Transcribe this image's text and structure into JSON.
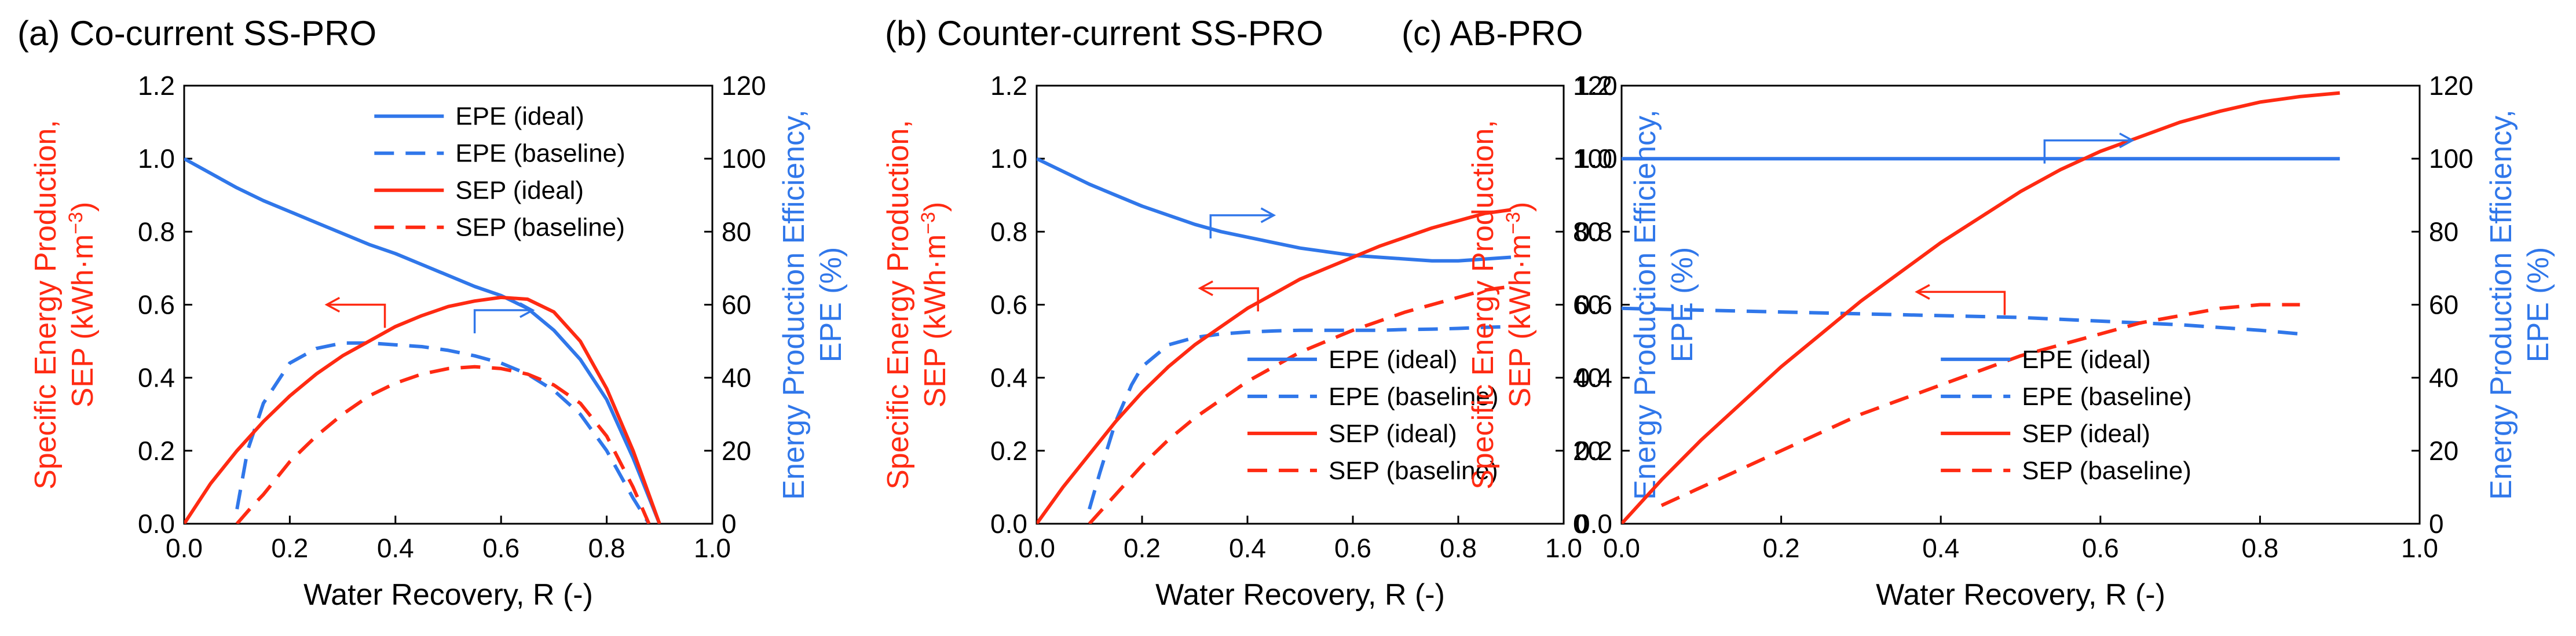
{
  "chart_data": [
    {
      "type": "line",
      "panel": "(a)",
      "title": "(a) Co-current SS-PRO",
      "xlabel": "Water Recovery, R (-)",
      "ylabel_left": [
        "Specific Energy Production,",
        "SEP (kWh·m",
        "−3",
        ")"
      ],
      "ylabel_right": [
        "Energy Production Efficiency,",
        "EPE (%)"
      ],
      "xlim": [
        0,
        1.0
      ],
      "ylim_left": [
        0,
        1.2
      ],
      "ylim_right": [
        0,
        120
      ],
      "xticks": [
        "0.0",
        "0.2",
        "0.4",
        "0.6",
        "0.8",
        "1.0"
      ],
      "yticks_left": [
        "0.0",
        "0.2",
        "0.4",
        "0.6",
        "0.8",
        "1.0",
        "1.2"
      ],
      "yticks_right": [
        "0",
        "20",
        "40",
        "60",
        "80",
        "100",
        "120"
      ],
      "legend_position": "top-right",
      "arrows": [
        {
          "from": [
            0.38,
            0.6
          ],
          "to": [
            0.27,
            0.6
          ],
          "axis": "left"
        },
        {
          "from": [
            0.55,
            0.585
          ],
          "to": [
            0.66,
            0.585
          ],
          "axis": "left"
        }
      ],
      "series": [
        {
          "name": "EPE (ideal)",
          "axis": "right",
          "color": "#3077ea",
          "dash": "solid",
          "x": [
            0.0,
            0.05,
            0.1,
            0.15,
            0.2,
            0.25,
            0.3,
            0.35,
            0.4,
            0.45,
            0.5,
            0.55,
            0.6,
            0.65,
            0.7,
            0.75,
            0.8,
            0.85,
            0.9
          ],
          "y": [
            100,
            96,
            92,
            88.5,
            85.5,
            82.5,
            79.5,
            76.5,
            74,
            71,
            68,
            65,
            62.5,
            59,
            53,
            45,
            34,
            18,
            0
          ]
        },
        {
          "name": "EPE (baseline)",
          "axis": "right",
          "color": "#3077ea",
          "dash": "dashed",
          "x": [
            0.1,
            0.12,
            0.15,
            0.2,
            0.25,
            0.3,
            0.35,
            0.4,
            0.45,
            0.5,
            0.55,
            0.6,
            0.65,
            0.7,
            0.75,
            0.8,
            0.85,
            0.88
          ],
          "y": [
            4,
            20,
            33,
            44,
            48,
            49.5,
            49.5,
            49,
            48.5,
            47.5,
            46,
            44,
            41,
            36.5,
            30,
            20,
            7,
            0
          ]
        },
        {
          "name": "SEP (ideal)",
          "axis": "left",
          "color": "#ff2a12",
          "dash": "solid",
          "x": [
            0.0,
            0.05,
            0.1,
            0.15,
            0.2,
            0.25,
            0.3,
            0.35,
            0.4,
            0.45,
            0.5,
            0.55,
            0.6,
            0.65,
            0.7,
            0.75,
            0.8,
            0.85,
            0.9
          ],
          "y": [
            0.0,
            0.11,
            0.2,
            0.28,
            0.35,
            0.41,
            0.46,
            0.5,
            0.54,
            0.57,
            0.595,
            0.61,
            0.62,
            0.615,
            0.58,
            0.5,
            0.37,
            0.2,
            0.0
          ]
        },
        {
          "name": "SEP (baseline)",
          "axis": "left",
          "color": "#ff2a12",
          "dash": "dashed",
          "x": [
            0.1,
            0.13,
            0.15,
            0.2,
            0.25,
            0.3,
            0.35,
            0.4,
            0.45,
            0.5,
            0.55,
            0.6,
            0.65,
            0.7,
            0.75,
            0.8,
            0.85,
            0.88
          ],
          "y": [
            0.0,
            0.05,
            0.08,
            0.17,
            0.24,
            0.3,
            0.35,
            0.385,
            0.41,
            0.425,
            0.43,
            0.425,
            0.41,
            0.38,
            0.33,
            0.24,
            0.1,
            0.0
          ]
        }
      ]
    },
    {
      "type": "line",
      "panel": "(b)",
      "title": "(b) Counter-current SS-PRO",
      "xlabel": "Water Recovery, R (-)",
      "ylabel_left": [
        "Specific Energy Production,",
        "SEP (kWh·m",
        "−3",
        ")"
      ],
      "ylabel_right": [
        "Energy Production Efficiency,",
        "EPE (%)"
      ],
      "xlim": [
        0,
        1.0
      ],
      "ylim_left": [
        0,
        1.2
      ],
      "ylim_right": [
        0,
        120
      ],
      "xticks": [
        "0.0",
        "0.2",
        "0.4",
        "0.6",
        "0.8",
        "1.0"
      ],
      "yticks_left": [
        "0.0",
        "0.2",
        "0.4",
        "0.6",
        "0.8",
        "1.0",
        "1.2"
      ],
      "yticks_right": [
        "0",
        "20",
        "40",
        "60",
        "80",
        "100",
        "120"
      ],
      "legend_position": "bottom-right",
      "arrows": [
        {
          "from": [
            0.33,
            0.845
          ],
          "to": [
            0.45,
            0.845
          ],
          "axis": "left"
        },
        {
          "from": [
            0.42,
            0.645
          ],
          "to": [
            0.31,
            0.645
          ],
          "axis": "left"
        }
      ],
      "series": [
        {
          "name": "EPE (ideal)",
          "axis": "right",
          "color": "#3077ea",
          "dash": "solid",
          "x": [
            0.0,
            0.05,
            0.1,
            0.15,
            0.2,
            0.25,
            0.3,
            0.35,
            0.4,
            0.45,
            0.5,
            0.55,
            0.6,
            0.65,
            0.7,
            0.75,
            0.8,
            0.85,
            0.9
          ],
          "y": [
            100,
            96.5,
            93,
            90,
            87,
            84.5,
            82,
            80,
            78.5,
            77,
            75.5,
            74.5,
            73.5,
            73,
            72.5,
            72,
            72,
            72.5,
            73
          ]
        },
        {
          "name": "EPE (baseline)",
          "axis": "right",
          "color": "#3077ea",
          "dash": "dashed",
          "x": [
            0.1,
            0.12,
            0.15,
            0.18,
            0.2,
            0.25,
            0.3,
            0.35,
            0.4,
            0.45,
            0.5,
            0.55,
            0.6,
            0.65,
            0.7,
            0.75,
            0.8,
            0.85,
            0.9
          ],
          "y": [
            4,
            14,
            28,
            38,
            43,
            49,
            51,
            52,
            52.5,
            52.8,
            53,
            53,
            53,
            53,
            53.2,
            53.3,
            53.5,
            53.8,
            54
          ]
        },
        {
          "name": "SEP (ideal)",
          "axis": "left",
          "color": "#ff2a12",
          "dash": "solid",
          "x": [
            0.0,
            0.05,
            0.1,
            0.15,
            0.2,
            0.25,
            0.3,
            0.35,
            0.4,
            0.45,
            0.5,
            0.55,
            0.6,
            0.65,
            0.7,
            0.75,
            0.8,
            0.85,
            0.9
          ],
          "y": [
            0.0,
            0.1,
            0.19,
            0.28,
            0.36,
            0.43,
            0.49,
            0.54,
            0.59,
            0.63,
            0.67,
            0.7,
            0.73,
            0.76,
            0.785,
            0.81,
            0.83,
            0.85,
            0.86
          ]
        },
        {
          "name": "SEP (baseline)",
          "axis": "left",
          "color": "#ff2a12",
          "dash": "dashed",
          "x": [
            0.1,
            0.15,
            0.2,
            0.25,
            0.3,
            0.35,
            0.4,
            0.45,
            0.5,
            0.55,
            0.6,
            0.65,
            0.7,
            0.75,
            0.8,
            0.85,
            0.9
          ],
          "y": [
            0.0,
            0.08,
            0.16,
            0.23,
            0.29,
            0.34,
            0.39,
            0.43,
            0.47,
            0.5,
            0.53,
            0.555,
            0.58,
            0.6,
            0.62,
            0.64,
            0.65
          ]
        }
      ]
    },
    {
      "type": "line",
      "panel": "(c)",
      "title": "(c) AB-PRO",
      "xlabel": "Water Recovery, R (-)",
      "ylabel_left": [
        "Specific Energy Production,",
        "SEP (kWh·m",
        "−3",
        ")"
      ],
      "ylabel_right": [
        "Energy Production Efficiency,",
        "EPE (%)"
      ],
      "xlim": [
        0,
        1.0
      ],
      "ylim_left": [
        0,
        1.2
      ],
      "ylim_right": [
        0,
        120
      ],
      "xticks": [
        "0.0",
        "0.2",
        "0.4",
        "0.6",
        "0.8",
        "1.0"
      ],
      "yticks_left": [
        "0.0",
        "0.2",
        "0.4",
        "0.6",
        "0.8",
        "1.0",
        "1.2"
      ],
      "yticks_right": [
        "0",
        "20",
        "40",
        "60",
        "80",
        "100",
        "120"
      ],
      "legend_position": "bottom-right",
      "arrows": [
        {
          "from": [
            0.53,
            1.05
          ],
          "to": [
            0.64,
            1.05
          ],
          "axis": "left"
        },
        {
          "from": [
            0.48,
            0.635
          ],
          "to": [
            0.37,
            0.635
          ],
          "axis": "left"
        }
      ],
      "series": [
        {
          "name": "EPE (ideal)",
          "axis": "right",
          "color": "#3077ea",
          "dash": "solid",
          "x": [
            0.0,
            0.9
          ],
          "y": [
            100,
            100
          ]
        },
        {
          "name": "EPE (baseline)",
          "axis": "right",
          "color": "#3077ea",
          "dash": "dashed",
          "x": [
            0.0,
            0.1,
            0.2,
            0.3,
            0.4,
            0.5,
            0.6,
            0.7,
            0.8,
            0.85
          ],
          "y": [
            59,
            58.5,
            58,
            57.5,
            57,
            56.5,
            55.5,
            54.5,
            53,
            52
          ]
        },
        {
          "name": "SEP (ideal)",
          "axis": "left",
          "color": "#ff2a12",
          "dash": "solid",
          "x": [
            0.0,
            0.05,
            0.1,
            0.15,
            0.2,
            0.25,
            0.3,
            0.35,
            0.4,
            0.45,
            0.5,
            0.55,
            0.6,
            0.65,
            0.7,
            0.75,
            0.8,
            0.85,
            0.9
          ],
          "y": [
            0.0,
            0.12,
            0.23,
            0.33,
            0.43,
            0.52,
            0.61,
            0.69,
            0.77,
            0.84,
            0.91,
            0.97,
            1.02,
            1.06,
            1.1,
            1.13,
            1.155,
            1.17,
            1.18
          ]
        },
        {
          "name": "SEP (baseline)",
          "axis": "left",
          "color": "#ff2a12",
          "dash": "dashed",
          "x": [
            0.05,
            0.1,
            0.15,
            0.2,
            0.25,
            0.3,
            0.35,
            0.4,
            0.45,
            0.5,
            0.55,
            0.6,
            0.65,
            0.7,
            0.75,
            0.8,
            0.85
          ],
          "y": [
            0.05,
            0.1,
            0.15,
            0.2,
            0.25,
            0.3,
            0.34,
            0.38,
            0.42,
            0.46,
            0.49,
            0.52,
            0.55,
            0.57,
            0.59,
            0.6,
            0.6
          ]
        }
      ]
    }
  ]
}
